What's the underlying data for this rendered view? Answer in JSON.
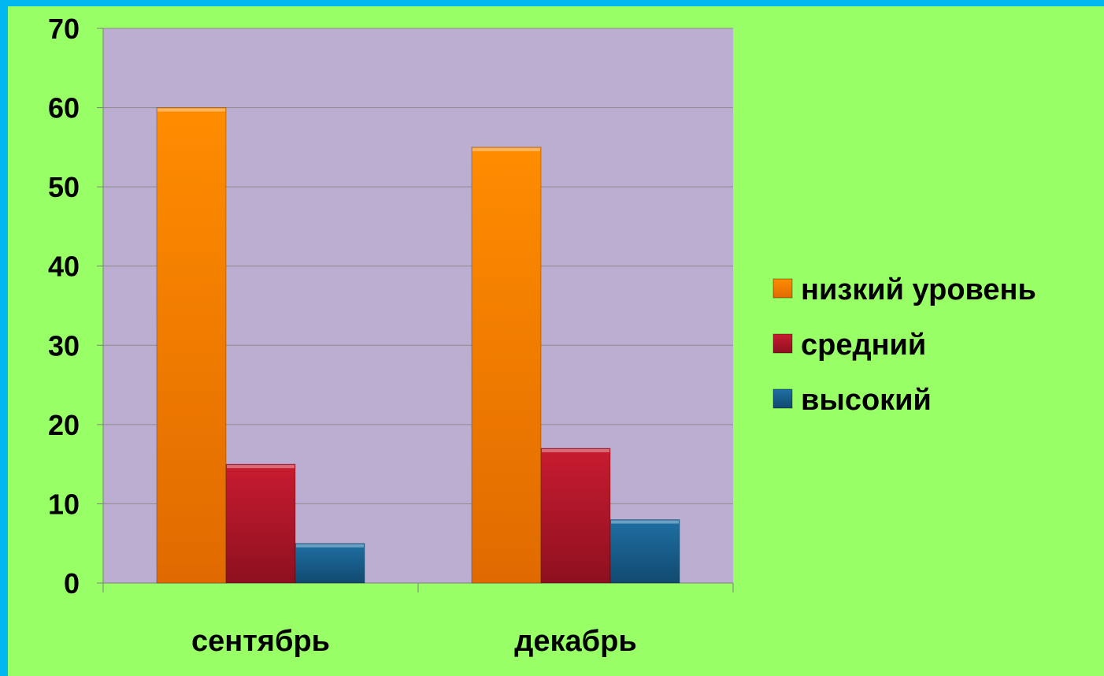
{
  "colors": {
    "frame": "#00b7f1",
    "background": "#99ff66",
    "plot_area": "#bcaed0",
    "gridline": "#8c8c8c"
  },
  "chart_data": {
    "type": "bar",
    "title": "",
    "xlabel": "",
    "ylabel": "",
    "categories": [
      "сентябрь",
      "декабрь"
    ],
    "ylim": [
      0,
      70
    ],
    "yticks": [
      0,
      10,
      20,
      30,
      40,
      50,
      60,
      70
    ],
    "grid": true,
    "legend_position": "right",
    "series": [
      {
        "name": "низкий уровень",
        "values": [
          60,
          55
        ],
        "color": "#ff8a00"
      },
      {
        "name": "средний",
        "values": [
          15,
          17
        ],
        "color": "#c0182d"
      },
      {
        "name": "высокий",
        "values": [
          5,
          8
        ],
        "color": "#1a5f8f"
      }
    ]
  }
}
